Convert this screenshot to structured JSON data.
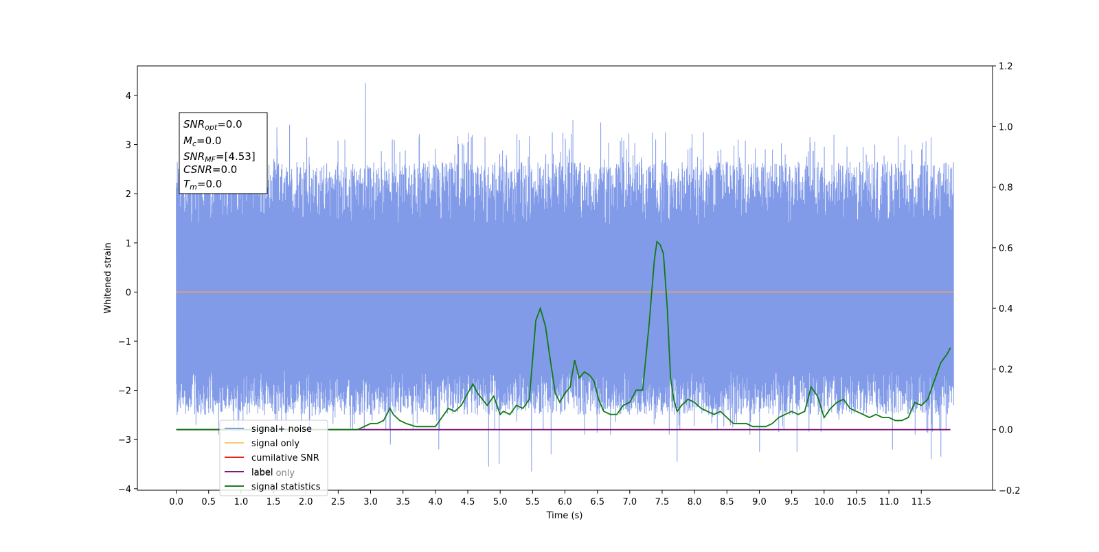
{
  "chart_data": {
    "type": "line",
    "xlabel": "Time (s)",
    "ylabel": "Whitened strain",
    "xlim": [
      -0.6,
      12.6
    ],
    "ylim": [
      -4.03,
      4.6
    ],
    "ylim_right": [
      -0.2,
      1.2
    ],
    "x_ticks": [
      "0.0",
      "0.5",
      "1.0",
      "1.5",
      "2.0",
      "2.5",
      "3.0",
      "3.5",
      "4.0",
      "4.5",
      "5.0",
      "5.5",
      "6.0",
      "6.5",
      "7.0",
      "7.5",
      "8.0",
      "8.5",
      "9.0",
      "9.5",
      "10.0",
      "10.5",
      "11.0",
      "11.5"
    ],
    "y_ticks_left": [
      "4",
      "3",
      "2",
      "1",
      "0",
      "−1",
      "−2",
      "−3",
      "−4"
    ],
    "y_ticks_right": [
      "1.2",
      "1.0",
      "0.8",
      "0.6",
      "0.4",
      "0.2",
      "0.0",
      "−0.2"
    ],
    "grid": false,
    "legend_placement": "lower-left",
    "legend": [
      {
        "label": "signal+ noise",
        "color": "#7f9ae6"
      },
      {
        "label": "signal only",
        "color": "#ffc972"
      },
      {
        "label": "cumilative SNR",
        "color": "#e8221c"
      },
      {
        "label": "label",
        "color": "#7b1b7e"
      },
      {
        "label": "signal statistics",
        "color": "#1e7d1e"
      }
    ],
    "legend_hidden_text": [
      "label only"
    ],
    "annotation": {
      "lines": [
        {
          "sym": "SNR",
          "sub": "opt",
          "value": "=0.0"
        },
        {
          "sym": "M",
          "sub": "c",
          "value": "=0.0"
        },
        {
          "sym": "SNR",
          "sub": "MF",
          "value": "=[4.53]"
        },
        {
          "sym": "CSNR",
          "sub": "",
          "value": "=0.0"
        },
        {
          "sym": "T",
          "sub": "m",
          "value": "=0.0"
        }
      ]
    },
    "series": [
      {
        "name": "signal+ noise",
        "axis": "left",
        "color": "#7b96e8",
        "x_range": [
          0.0,
          12.0
        ],
        "band": [
          -1.6,
          1.35
        ],
        "spikes": [
          [
            0.1,
            2.8
          ],
          [
            0.3,
            -2.7
          ],
          [
            0.5,
            2.7
          ],
          [
            0.65,
            -2.9
          ],
          [
            0.8,
            3.0
          ],
          [
            0.95,
            -2.7
          ],
          [
            1.35,
            2.9
          ],
          [
            1.55,
            3.35
          ],
          [
            1.75,
            3.4
          ],
          [
            2.05,
            2.75
          ],
          [
            2.15,
            -2.4
          ],
          [
            2.45,
            -2.55
          ],
          [
            2.6,
            3.1
          ],
          [
            2.72,
            -2.8
          ],
          [
            2.92,
            4.25
          ],
          [
            3.05,
            -2.4
          ],
          [
            3.3,
            -3.1
          ],
          [
            3.45,
            2.85
          ],
          [
            3.65,
            -2.8
          ],
          [
            3.8,
            2.5
          ],
          [
            4.05,
            -3.2
          ],
          [
            4.3,
            2.8
          ],
          [
            4.5,
            3.05
          ],
          [
            4.65,
            -2.5
          ],
          [
            4.82,
            -3.55
          ],
          [
            4.98,
            -3.5
          ],
          [
            5.1,
            2.7
          ],
          [
            5.3,
            2.5
          ],
          [
            5.48,
            -3.65
          ],
          [
            5.62,
            2.55
          ],
          [
            5.78,
            -3.3
          ],
          [
            5.95,
            2.55
          ],
          [
            6.12,
            3.5
          ],
          [
            6.3,
            -2.9
          ],
          [
            6.55,
            3.45
          ],
          [
            6.7,
            -2.9
          ],
          [
            6.95,
            2.9
          ],
          [
            7.25,
            2.2
          ],
          [
            7.4,
            3.1
          ],
          [
            7.55,
            3.25
          ],
          [
            7.73,
            -3.45
          ],
          [
            7.9,
            2.9
          ],
          [
            8.1,
            2.7
          ],
          [
            8.35,
            -2.8
          ],
          [
            8.5,
            2.65
          ],
          [
            8.67,
            3.1
          ],
          [
            8.85,
            -2.9
          ],
          [
            9.0,
            -3.25
          ],
          [
            9.2,
            2.9
          ],
          [
            9.4,
            2.8
          ],
          [
            9.58,
            -3.25
          ],
          [
            9.78,
            3.15
          ],
          [
            9.95,
            -2.85
          ],
          [
            10.15,
            3.2
          ],
          [
            10.4,
            2.65
          ],
          [
            10.6,
            2.95
          ],
          [
            10.78,
            3.0
          ],
          [
            10.95,
            2.6
          ],
          [
            11.05,
            -3.2
          ],
          [
            11.25,
            3.0
          ],
          [
            11.4,
            -2.9
          ],
          [
            11.5,
            2.9
          ],
          [
            11.65,
            -3.4
          ],
          [
            11.8,
            -3.35
          ],
          [
            11.9,
            2.3
          ]
        ]
      },
      {
        "name": "signal only",
        "axis": "left",
        "color": "#f0a55a",
        "x": [
          0.0,
          12.0
        ],
        "y": [
          0.0,
          0.0
        ]
      },
      {
        "name": "label",
        "axis": "right",
        "color": "#7b1b7e",
        "x": [
          0.0,
          11.95
        ],
        "y": [
          0.0,
          0.0
        ]
      },
      {
        "name": "signal statistics",
        "axis": "right",
        "color": "#0f7a12",
        "x": [
          0.0,
          2.8,
          2.9,
          3.0,
          3.1,
          3.2,
          3.3,
          3.35,
          3.45,
          3.55,
          3.7,
          3.85,
          4.0,
          4.1,
          4.2,
          4.3,
          4.4,
          4.5,
          4.58,
          4.65,
          4.8,
          4.9,
          5.0,
          5.05,
          5.15,
          5.25,
          5.35,
          5.45,
          5.55,
          5.62,
          5.7,
          5.78,
          5.85,
          5.92,
          6.0,
          6.08,
          6.15,
          6.22,
          6.3,
          6.38,
          6.45,
          6.52,
          6.6,
          6.7,
          6.8,
          6.9,
          7.0,
          7.1,
          7.2,
          7.3,
          7.38,
          7.42,
          7.47,
          7.52,
          7.58,
          7.63,
          7.68,
          7.73,
          7.8,
          7.9,
          8.0,
          8.1,
          8.2,
          8.3,
          8.4,
          8.5,
          8.6,
          8.7,
          8.8,
          8.9,
          9.0,
          9.1,
          9.2,
          9.3,
          9.4,
          9.5,
          9.6,
          9.7,
          9.8,
          9.9,
          10.0,
          10.1,
          10.2,
          10.3,
          10.4,
          10.5,
          10.6,
          10.7,
          10.8,
          10.9,
          11.0,
          11.1,
          11.2,
          11.3,
          11.4,
          11.5,
          11.6,
          11.7,
          11.8,
          11.9,
          11.95
        ],
        "y": [
          0.0,
          0.0,
          0.01,
          0.02,
          0.02,
          0.03,
          0.07,
          0.05,
          0.03,
          0.02,
          0.01,
          0.01,
          0.01,
          0.04,
          0.07,
          0.06,
          0.08,
          0.12,
          0.15,
          0.12,
          0.08,
          0.11,
          0.05,
          0.06,
          0.05,
          0.08,
          0.07,
          0.1,
          0.36,
          0.4,
          0.34,
          0.22,
          0.12,
          0.09,
          0.12,
          0.14,
          0.23,
          0.17,
          0.19,
          0.18,
          0.16,
          0.1,
          0.06,
          0.05,
          0.05,
          0.08,
          0.09,
          0.13,
          0.13,
          0.35,
          0.56,
          0.62,
          0.61,
          0.58,
          0.4,
          0.17,
          0.1,
          0.06,
          0.08,
          0.1,
          0.09,
          0.07,
          0.06,
          0.05,
          0.06,
          0.04,
          0.02,
          0.02,
          0.02,
          0.01,
          0.01,
          0.01,
          0.02,
          0.04,
          0.05,
          0.06,
          0.05,
          0.06,
          0.14,
          0.11,
          0.04,
          0.07,
          0.09,
          0.1,
          0.07,
          0.06,
          0.05,
          0.04,
          0.05,
          0.04,
          0.04,
          0.03,
          0.03,
          0.04,
          0.09,
          0.08,
          0.1,
          0.16,
          0.22,
          0.25,
          0.27
        ]
      }
    ]
  }
}
